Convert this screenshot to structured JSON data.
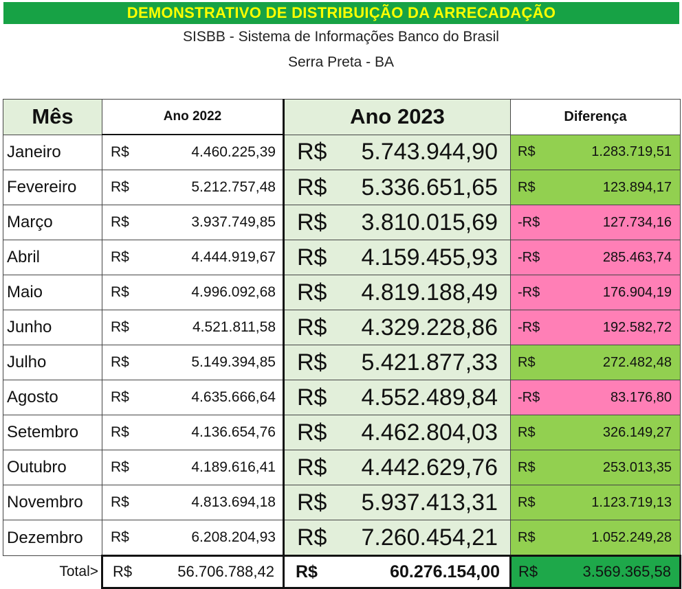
{
  "header": {
    "banner": "DEMONSTRATIVO DE DISTRIBUIÇÃO DA ARRECADAÇÃO",
    "subtitle1": "SISBB - Sistema de Informações Banco do Brasil",
    "subtitle2": "Serra Preta - BA"
  },
  "colors": {
    "banner_bg": "#17a245",
    "banner_text": "#ffff00",
    "light_green": "#e2efda",
    "positive": "#92d050",
    "negative": "#ff7fb6",
    "total_diff": "#1ea84a"
  },
  "columns": {
    "month": "Mês",
    "y2022": "Ano 2022",
    "y2023": "Ano 2023",
    "diff": "Diferença"
  },
  "currency": "R$",
  "rows": [
    {
      "month": "Janeiro",
      "v2022": "4.460.225,39",
      "v2023": "5.743.944,90",
      "cur_diff": "R$",
      "diff": "1.283.719,51",
      "sign": "pos"
    },
    {
      "month": "Fevereiro",
      "v2022": "5.212.757,48",
      "v2023": "5.336.651,65",
      "cur_diff": "R$",
      "diff": "123.894,17",
      "sign": "pos"
    },
    {
      "month": "Março",
      "v2022": "3.937.749,85",
      "v2023": "3.810.015,69",
      "cur_diff": "-R$",
      "diff": "127.734,16",
      "sign": "neg"
    },
    {
      "month": "Abril",
      "v2022": "4.444.919,67",
      "v2023": "4.159.455,93",
      "cur_diff": "-R$",
      "diff": "285.463,74",
      "sign": "neg"
    },
    {
      "month": "Maio",
      "v2022": "4.996.092,68",
      "v2023": "4.819.188,49",
      "cur_diff": "-R$",
      "diff": "176.904,19",
      "sign": "neg"
    },
    {
      "month": "Junho",
      "v2022": "4.521.811,58",
      "v2023": "4.329.228,86",
      "cur_diff": "-R$",
      "diff": "192.582,72",
      "sign": "neg"
    },
    {
      "month": "Julho",
      "v2022": "5.149.394,85",
      "v2023": "5.421.877,33",
      "cur_diff": "R$",
      "diff": "272.482,48",
      "sign": "pos"
    },
    {
      "month": "Agosto",
      "v2022": "4.635.666,64",
      "v2023": "4.552.489,84",
      "cur_diff": "-R$",
      "diff": "83.176,80",
      "sign": "neg"
    },
    {
      "month": "Setembro",
      "v2022": "4.136.654,76",
      "v2023": "4.462.804,03",
      "cur_diff": "R$",
      "diff": "326.149,27",
      "sign": "pos"
    },
    {
      "month": "Outubro",
      "v2022": "4.189.616,41",
      "v2023": "4.442.629,76",
      "cur_diff": "R$",
      "diff": "253.013,35",
      "sign": "pos"
    },
    {
      "month": "Novembro",
      "v2022": "4.813.694,18",
      "v2023": "5.937.413,31",
      "cur_diff": "R$",
      "diff": "1.123.719,13",
      "sign": "pos"
    },
    {
      "month": "Dezembro",
      "v2022": "6.208.204,93",
      "v2023": "7.260.454,21",
      "cur_diff": "R$",
      "diff": "1.052.249,28",
      "sign": "pos"
    }
  ],
  "total": {
    "label": "Total>",
    "v2022": "56.706.788,42",
    "v2023": "60.276.154,00",
    "diff": "3.569.365,58"
  }
}
